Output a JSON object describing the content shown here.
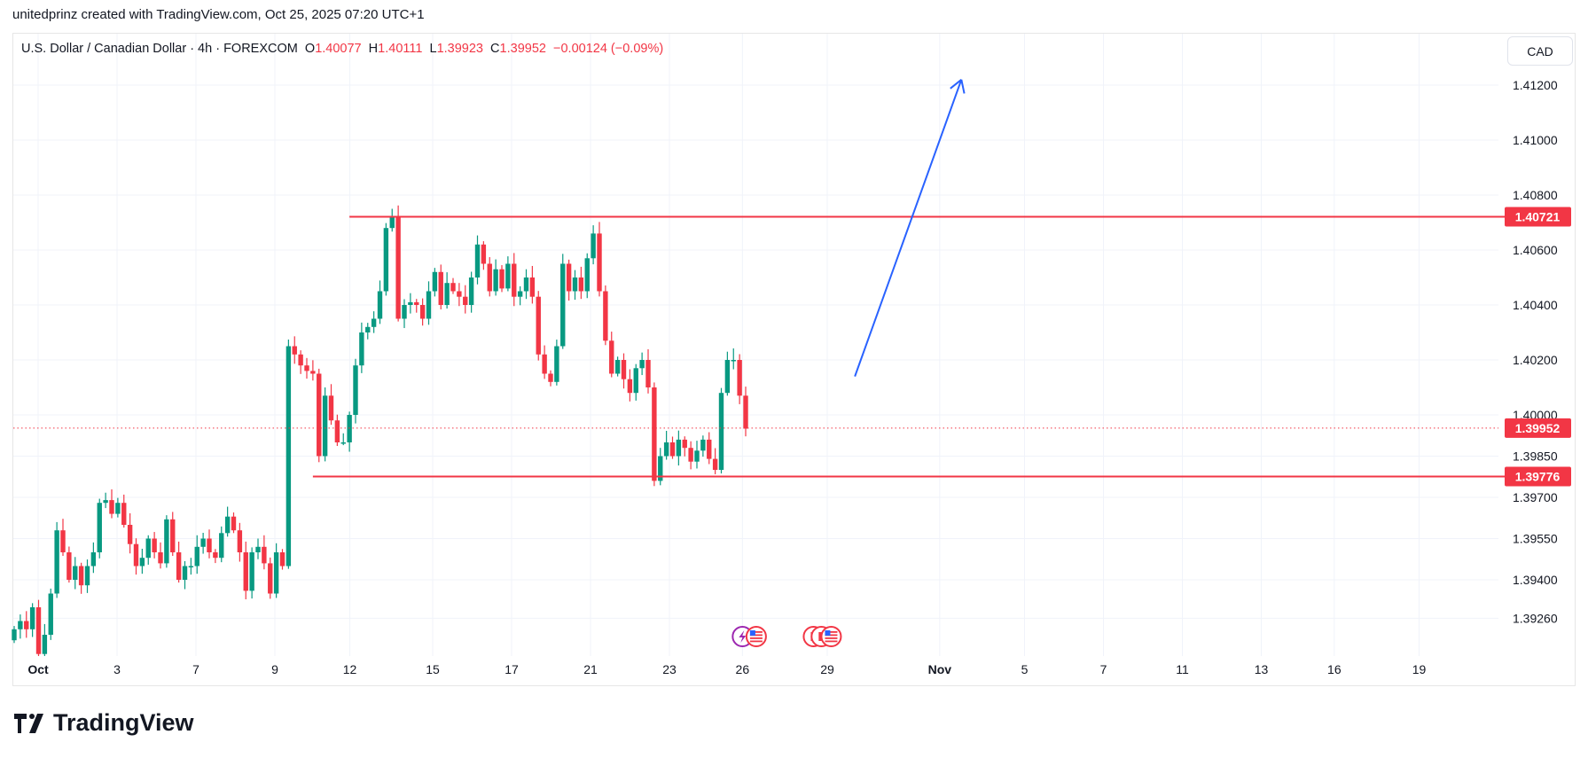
{
  "caption": "unitedprinz created with TradingView.com, Oct 25, 2025 07:20 UTC+1",
  "legend": {
    "symbol": "U.S. Dollar / Canadian Dollar · 4h · FOREXCOM",
    "o_label": "O",
    "o": "1.40077",
    "h_label": "H",
    "h": "1.40111",
    "l_label": "L",
    "l": "1.39923",
    "c_label": "C",
    "c": "1.39952",
    "change": "−0.00124 (−0.09%)"
  },
  "currency_button": "CAD",
  "brand": "TradingView",
  "colors": {
    "up": "#089981",
    "down": "#f23645",
    "arrow": "#2962ff",
    "grid": "#f0f3fa"
  },
  "chart_data": {
    "type": "candlestick",
    "symbol": "USDCAD",
    "timeframe": "4h",
    "ylim": [
      1.3918,
      1.413
    ],
    "y_ticks": [
      "1.41200",
      "1.41000",
      "1.40800",
      "1.40600",
      "1.40400",
      "1.40200",
      "1.40000",
      "1.39850",
      "1.39700",
      "1.39550",
      "1.39400",
      "1.39260"
    ],
    "x_ticks": [
      {
        "label": "Oct",
        "day_index": 0
      },
      {
        "label": "3",
        "day_index": 2
      },
      {
        "label": "7",
        "day_index": 4
      },
      {
        "label": "9",
        "day_index": 6
      },
      {
        "label": "12",
        "day_index": 7.9
      },
      {
        "label": "15",
        "day_index": 10
      },
      {
        "label": "17",
        "day_index": 12
      },
      {
        "label": "21",
        "day_index": 14
      },
      {
        "label": "23",
        "day_index": 16
      },
      {
        "label": "26",
        "day_index": 17.85
      },
      {
        "label": "29",
        "day_index": 20
      },
      {
        "label": "Nov",
        "day_index": 22.85
      },
      {
        "label": "5",
        "day_index": 25
      },
      {
        "label": "7",
        "day_index": 27
      },
      {
        "label": "11",
        "day_index": 29
      },
      {
        "label": "13",
        "day_index": 31
      },
      {
        "label": "16",
        "day_index": 32.85
      },
      {
        "label": "19",
        "day_index": 35
      }
    ],
    "first_open": 1.3918,
    "closes": [
      1.3922,
      1.3925,
      1.3922,
      1.393,
      1.3913,
      1.392,
      1.3935,
      1.3958,
      1.395,
      1.394,
      1.3945,
      1.3938,
      1.3945,
      1.395,
      1.3968,
      1.3969,
      1.3964,
      1.3968,
      1.396,
      1.3953,
      1.3945,
      1.3948,
      1.3955,
      1.395,
      1.3946,
      1.3962,
      1.395,
      1.394,
      1.3945,
      1.3945,
      1.3952,
      1.3955,
      1.395,
      1.3948,
      1.3957,
      1.3963,
      1.3958,
      1.395,
      1.3936,
      1.395,
      1.3952,
      1.3946,
      1.3935,
      1.395,
      1.3945,
      1.4025,
      1.4022,
      1.4018,
      1.4016,
      1.4015,
      1.3985,
      1.4007,
      1.3998,
      1.399,
      1.399,
      1.4,
      1.4018,
      1.403,
      1.4032,
      1.4035,
      1.4045,
      1.4068,
      1.4072,
      1.4035,
      1.404,
      1.4041,
      1.404,
      1.4035,
      1.4045,
      1.4052,
      1.404,
      1.4048,
      1.4045,
      1.4043,
      1.404,
      1.405,
      1.4062,
      1.4055,
      1.4045,
      1.4053,
      1.4046,
      1.4055,
      1.4043,
      1.4045,
      1.405,
      1.4043,
      1.4022,
      1.4015,
      1.4012,
      1.4025,
      1.4055,
      1.4045,
      1.405,
      1.4045,
      1.4057,
      1.4066,
      1.4045,
      1.4027,
      1.4015,
      1.402,
      1.4013,
      1.4008,
      1.4017,
      1.402,
      1.401,
      1.3976,
      1.3985,
      1.399,
      1.3985,
      1.3991,
      1.3988,
      1.3983,
      1.3987,
      1.3991,
      1.3984,
      1.398,
      1.4008,
      1.402,
      1.402,
      1.4007,
      1.3995
    ],
    "horizontal_lines": [
      {
        "name": "resistance",
        "price": 1.40721,
        "label": "1.40721",
        "start_candle": 55
      },
      {
        "name": "support",
        "price": 1.39776,
        "label": "1.39776",
        "start_candle": 49
      }
    ],
    "last_price": {
      "price": 1.39952,
      "label": "1.39952"
    },
    "arrow": {
      "from": {
        "day_index": 20.7,
        "price": 1.4014
      },
      "to": {
        "day_index": 23.4,
        "price": 1.4122
      }
    },
    "events": [
      {
        "icon": "lightning-icon",
        "day_index": 17.85
      },
      {
        "icon": "us-flag-icon",
        "day_index": 18.2
      },
      {
        "icon": "canada-flag-icon",
        "day_index": 19.65
      },
      {
        "icon": "canada-flag-icon",
        "day_index": 19.85
      },
      {
        "icon": "us-flag-icon",
        "day_index": 20.1
      }
    ]
  }
}
